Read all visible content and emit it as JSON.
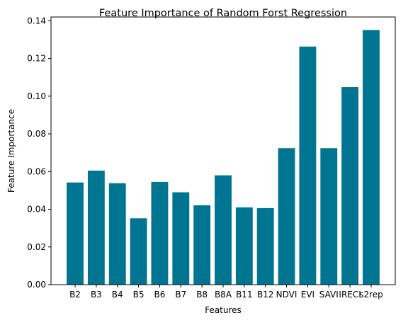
{
  "chart_data": {
    "type": "bar",
    "title": "Feature Importance of Random Forst Regression",
    "xlabel": "Features",
    "ylabel": "Feature Importance",
    "categories": [
      "B2",
      "B3",
      "B4",
      "B5",
      "B6",
      "B7",
      "B8",
      "B8A",
      "B11",
      "B12",
      "NDVI",
      "EVI",
      "SAVI",
      "IRECI",
      "s2rep"
    ],
    "values": [
      0.0542,
      0.0605,
      0.0538,
      0.0352,
      0.0545,
      0.049,
      0.0421,
      0.058,
      0.041,
      0.0406,
      0.0724,
      0.1263,
      0.0724,
      0.1048,
      0.1351
    ],
    "ylim": [
      0,
      0.142
    ],
    "yticks": [
      "0.00",
      "0.02",
      "0.04",
      "0.06",
      "0.08",
      "0.10",
      "0.12",
      "0.14"
    ],
    "bar_color": "#007591",
    "grid": false,
    "legend": "none"
  }
}
